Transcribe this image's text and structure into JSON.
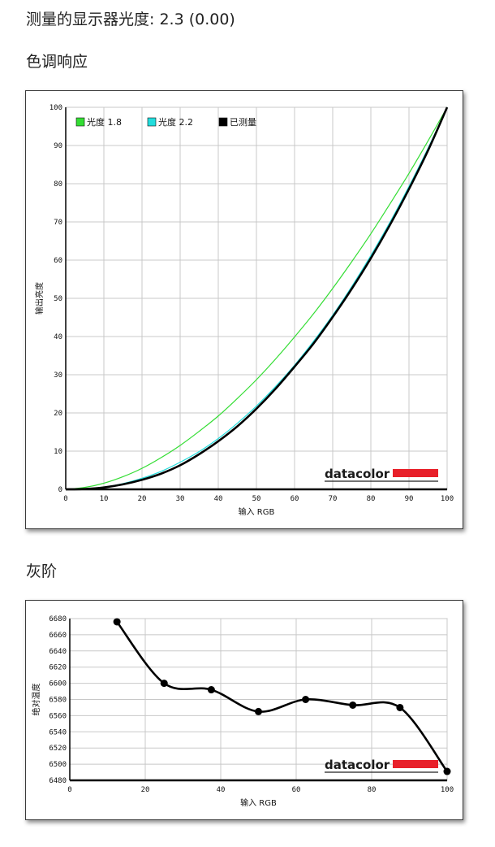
{
  "measured_gamma_heading": "测量的显示器光度: 2.3 (0.00)",
  "tone_section_title": "色调响应",
  "gray_section_title": "灰阶",
  "brand_logo_text": "datacolor",
  "colors": {
    "gamma18": "#33dd33",
    "gamma22": "#22dddd",
    "measured": "#000000",
    "brand_bar": "#e8202a"
  },
  "chart_data": [
    {
      "type": "line",
      "xlabel": "输入 RGB",
      "ylabel": "输出亮度",
      "xlim": [
        0,
        100
      ],
      "ylim": [
        0,
        100
      ],
      "xticks": [
        "0",
        "10",
        "20",
        "30",
        "40",
        "50",
        "60",
        "70",
        "80",
        "90",
        "100"
      ],
      "yticks": [
        "0",
        "10",
        "20",
        "30",
        "40",
        "50",
        "60",
        "70",
        "80",
        "90",
        "100"
      ],
      "grid": true,
      "legend_position": "top-left",
      "x": [
        0,
        5,
        10,
        15,
        20,
        25,
        30,
        35,
        40,
        45,
        50,
        55,
        60,
        65,
        70,
        75,
        80,
        85,
        90,
        95,
        100
      ],
      "series": [
        {
          "name": "光度 1.8",
          "color": "#33dd33",
          "values": [
            0,
            0.5,
            1.6,
            3.3,
            5.5,
            8.3,
            11.5,
            15.2,
            19.2,
            23.8,
            28.7,
            34.1,
            39.9,
            46.0,
            52.6,
            59.6,
            66.9,
            74.7,
            82.7,
            91.2,
            100
          ]
        },
        {
          "name": "光度 2.2",
          "color": "#22dddd",
          "values": [
            0,
            0.1,
            0.6,
            1.5,
            2.9,
            4.7,
            7.1,
            9.9,
            13.3,
            17.3,
            21.8,
            26.9,
            32.5,
            38.8,
            45.6,
            53.1,
            61.2,
            69.9,
            79.3,
            89.3,
            100
          ]
        },
        {
          "name": "已测量",
          "color": "#000000",
          "values": [
            0,
            0.1,
            0.5,
            1.3,
            2.5,
            4.1,
            6.3,
            9.2,
            12.6,
            16.5,
            21.1,
            26.3,
            32.1,
            38.2,
            45.1,
            52.5,
            60.5,
            69.2,
            78.6,
            88.7,
            100
          ]
        }
      ]
    },
    {
      "type": "line",
      "xlabel": "输入 RGB",
      "ylabel": "绝对温度",
      "xlim": [
        0,
        100
      ],
      "ylim": [
        6480,
        6680
      ],
      "xticks": [
        "0",
        "20",
        "40",
        "60",
        "80",
        "100"
      ],
      "yticks": [
        "6480",
        "6500",
        "6520",
        "6540",
        "6560",
        "6580",
        "6600",
        "6620",
        "6640",
        "6660",
        "6680"
      ],
      "grid": true,
      "x": [
        12.5,
        25,
        37.5,
        50,
        62.5,
        75,
        87.5,
        100
      ],
      "series": [
        {
          "color": "#000000",
          "markers": true,
          "values": [
            6676,
            6600,
            6592,
            6565,
            6580,
            6573,
            6570,
            6491
          ]
        }
      ]
    }
  ]
}
